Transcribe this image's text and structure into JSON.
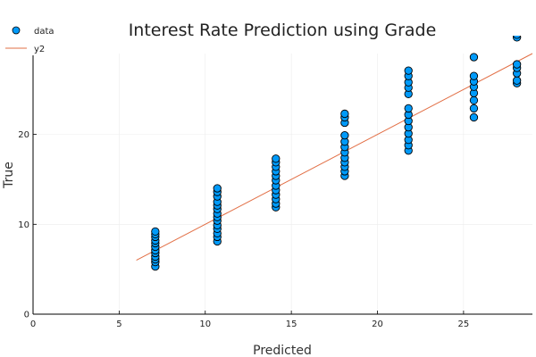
{
  "chart_data": {
    "type": "scatter",
    "title": "Interest Rate Prediction using Grade",
    "xlabel": "Predicted",
    "ylabel": "True",
    "xlim": [
      0,
      29
    ],
    "ylim": [
      0,
      29
    ],
    "x_ticks": [
      0,
      5,
      10,
      15,
      20,
      25
    ],
    "y_ticks": [
      0,
      10,
      20
    ],
    "grid": true,
    "legend_position": "top-left",
    "colors": {
      "data": "#009af9",
      "data_edge": "#000000",
      "y2": "#e26f46"
    },
    "series": [
      {
        "name": "data",
        "type": "scatter",
        "points": [
          [
            7.1,
            5.3
          ],
          [
            7.1,
            5.8
          ],
          [
            7.1,
            6.1
          ],
          [
            7.1,
            6.4
          ],
          [
            7.1,
            6.8
          ],
          [
            7.1,
            7.1
          ],
          [
            7.1,
            7.5
          ],
          [
            7.1,
            7.9
          ],
          [
            7.1,
            8.2
          ],
          [
            7.1,
            8.6
          ],
          [
            7.1,
            8.9
          ],
          [
            7.1,
            9.2
          ],
          [
            10.7,
            8.1
          ],
          [
            10.7,
            8.6
          ],
          [
            10.7,
            9.0
          ],
          [
            10.7,
            9.5
          ],
          [
            10.7,
            9.9
          ],
          [
            10.7,
            10.4
          ],
          [
            10.7,
            10.8
          ],
          [
            10.7,
            11.2
          ],
          [
            10.7,
            11.7
          ],
          [
            10.7,
            12.1
          ],
          [
            10.7,
            12.5
          ],
          [
            10.7,
            13.1
          ],
          [
            10.7,
            13.6
          ],
          [
            10.7,
            14.0
          ],
          [
            14.1,
            11.9
          ],
          [
            14.1,
            12.3
          ],
          [
            14.1,
            12.8
          ],
          [
            14.1,
            13.3
          ],
          [
            14.1,
            13.8
          ],
          [
            14.1,
            14.3
          ],
          [
            14.1,
            14.9
          ],
          [
            14.1,
            15.4
          ],
          [
            14.1,
            15.9
          ],
          [
            14.1,
            16.4
          ],
          [
            14.1,
            16.9
          ],
          [
            14.1,
            17.3
          ],
          [
            18.1,
            15.4
          ],
          [
            18.1,
            15.9
          ],
          [
            18.1,
            16.4
          ],
          [
            18.1,
            16.9
          ],
          [
            18.1,
            17.4
          ],
          [
            18.1,
            18.0
          ],
          [
            18.1,
            18.6
          ],
          [
            18.1,
            19.2
          ],
          [
            18.1,
            19.9
          ],
          [
            18.1,
            21.3
          ],
          [
            18.1,
            21.9
          ],
          [
            18.1,
            22.3
          ],
          [
            21.8,
            18.2
          ],
          [
            21.8,
            18.8
          ],
          [
            21.8,
            19.4
          ],
          [
            21.8,
            20.1
          ],
          [
            21.8,
            20.8
          ],
          [
            21.8,
            21.5
          ],
          [
            21.8,
            22.2
          ],
          [
            21.8,
            22.9
          ],
          [
            21.8,
            24.5
          ],
          [
            21.8,
            25.2
          ],
          [
            21.8,
            25.8
          ],
          [
            21.8,
            26.5
          ],
          [
            21.8,
            27.1
          ],
          [
            25.6,
            21.9
          ],
          [
            25.6,
            22.9
          ],
          [
            25.6,
            23.8
          ],
          [
            25.6,
            24.6
          ],
          [
            25.6,
            25.3
          ],
          [
            25.6,
            25.9
          ],
          [
            25.6,
            26.5
          ],
          [
            25.6,
            28.6
          ],
          [
            28.1,
            25.7
          ],
          [
            28.1,
            26.0
          ],
          [
            28.1,
            26.8
          ],
          [
            28.1,
            27.4
          ],
          [
            28.1,
            27.8
          ],
          [
            28.1,
            30.8
          ],
          [
            28.1,
            31.1
          ]
        ]
      },
      {
        "name": "y2",
        "type": "line",
        "points": [
          [
            6.0,
            6.0
          ],
          [
            29.0,
            29.0
          ]
        ]
      }
    ]
  }
}
